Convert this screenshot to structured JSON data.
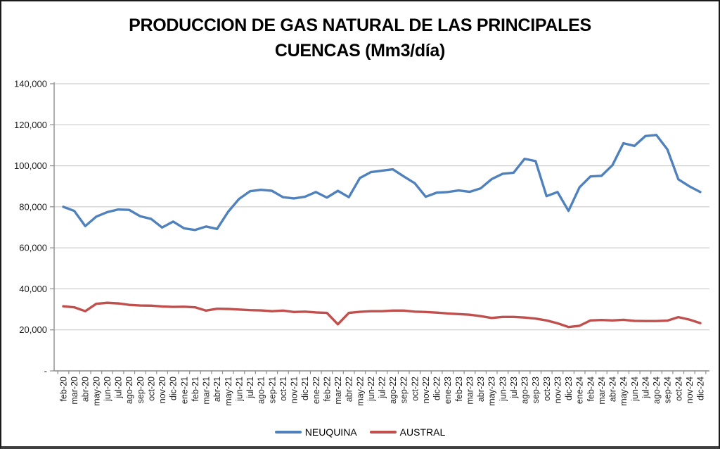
{
  "chart_data": {
    "type": "line",
    "title": "PRODUCCION DE GAS NATURAL DE LAS PRINCIPALES CUENCAS (Mm3/día)",
    "title_lines": [
      "PRODUCCION DE GAS NATURAL DE LAS PRINCIPALES",
      "CUENCAS (Mm3/día)"
    ],
    "xlabel": "",
    "ylabel": "",
    "ylim": [
      0,
      140000
    ],
    "ytick_interval": 20000,
    "ytick_labels": [
      "-",
      "20,000",
      "40,000",
      "60,000",
      "80,000",
      "100,000",
      "120,000",
      "140,000"
    ],
    "grid": true,
    "legend_position": "bottom",
    "categories": [
      "feb-20",
      "mar-20",
      "abr-20",
      "may-20",
      "jun-20",
      "jul-20",
      "ago-20",
      "sep-20",
      "oct-20",
      "nov-20",
      "dic-20",
      "ene-21",
      "feb-21",
      "mar-21",
      "abr-21",
      "may-21",
      "jun-21",
      "jul-21",
      "ago-21",
      "sep-21",
      "oct-21",
      "nov-21",
      "dic-21",
      "ene-22",
      "feb-22",
      "mar-22",
      "abr-22",
      "may-22",
      "jun-22",
      "jul-22",
      "ago-22",
      "sep-22",
      "oct-22",
      "nov-22",
      "dic-22",
      "ene-23",
      "feb-23",
      "mar-23",
      "abr-23",
      "may-23",
      "jun-23",
      "jul-23",
      "ago-23",
      "sep-23",
      "oct-23",
      "nov-23",
      "dic-23",
      "ene-24",
      "feb-24",
      "mar-24",
      "abr-24",
      "may-24",
      "jun-24",
      "jul-24",
      "ago-24",
      "sep-24",
      "oct-24",
      "nov-24",
      "dic-24"
    ],
    "series": [
      {
        "name": "NEUQUINA",
        "color": "#4F81BD",
        "values": [
          80000,
          78000,
          70600,
          75200,
          77400,
          78700,
          78500,
          75400,
          74100,
          69900,
          72800,
          69500,
          68700,
          70400,
          69200,
          77500,
          83800,
          87600,
          88300,
          87800,
          84700,
          84100,
          84900,
          87200,
          84500,
          87800,
          84700,
          94000,
          96900,
          97600,
          98300,
          94800,
          91500,
          84900,
          86900,
          87200,
          88000,
          87300,
          89000,
          93500,
          96100,
          96600,
          103400,
          102300,
          85200,
          87200,
          78000,
          89500,
          94800,
          95100,
          100300,
          111000,
          109700,
          114500,
          115000,
          108000,
          93400,
          90000,
          87200
        ]
      },
      {
        "name": "AUSTRAL",
        "color": "#C0504D",
        "values": [
          31500,
          31000,
          29100,
          32700,
          33200,
          32900,
          32200,
          31900,
          31800,
          31400,
          31200,
          31300,
          31000,
          29400,
          30300,
          30200,
          29900,
          29600,
          29500,
          29100,
          29400,
          28700,
          28900,
          28500,
          28300,
          22700,
          28300,
          28800,
          29100,
          29100,
          29400,
          29400,
          28900,
          28700,
          28400,
          28000,
          27700,
          27400,
          26700,
          25800,
          26300,
          26300,
          26000,
          25500,
          24600,
          23200,
          21400,
          22000,
          24600,
          24800,
          24600,
          24900,
          24400,
          24300,
          24300,
          24500,
          26200,
          25000,
          23300
        ]
      }
    ],
    "axis_color": "#8c8c8c",
    "gridline_color": "#c3c3c3"
  }
}
